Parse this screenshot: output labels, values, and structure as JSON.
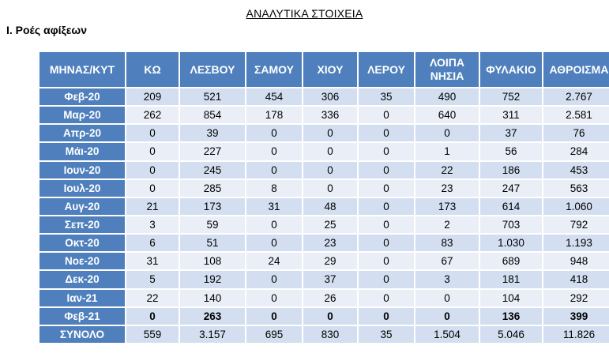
{
  "document": {
    "title": "ΑΝΑΛΥΤΙΚΑ ΣΤΟΙΧΕΙΑ",
    "section_heading": "Ι. Ροές αφίξεων"
  },
  "table": {
    "headers": [
      "ΜΗΝΑΣ/ΚΥΤ",
      "ΚΩ",
      "ΛΕΣΒΟΥ",
      "ΣΑΜΟΥ",
      "ΧΙΟΥ",
      "ΛΕΡΟΥ",
      "ΛΟΙΠΑ ΝΗΣΙΑ",
      "ΦΥΛΑΚΙΟ",
      "ΑΘΡΟΙΣΜΑ"
    ],
    "rows": [
      {
        "label": "Φεβ-20",
        "values": [
          "209",
          "521",
          "454",
          "306",
          "35",
          "490",
          "752",
          "2.767"
        ]
      },
      {
        "label": "Μαρ-20",
        "values": [
          "262",
          "854",
          "178",
          "336",
          "0",
          "640",
          "311",
          "2.581"
        ]
      },
      {
        "label": "Απρ-20",
        "values": [
          "0",
          "39",
          "0",
          "0",
          "0",
          "0",
          "37",
          "76"
        ]
      },
      {
        "label": "Μάι-20",
        "values": [
          "0",
          "227",
          "0",
          "0",
          "0",
          "1",
          "56",
          "284"
        ]
      },
      {
        "label": "Ιουν-20",
        "values": [
          "0",
          "245",
          "0",
          "0",
          "0",
          "22",
          "186",
          "453"
        ]
      },
      {
        "label": "Ιουλ-20",
        "values": [
          "0",
          "285",
          "8",
          "0",
          "0",
          "23",
          "247",
          "563"
        ]
      },
      {
        "label": "Αυγ-20",
        "values": [
          "21",
          "173",
          "31",
          "48",
          "0",
          "173",
          "614",
          "1.060"
        ]
      },
      {
        "label": "Σεπ-20",
        "values": [
          "3",
          "59",
          "0",
          "25",
          "0",
          "2",
          "703",
          "792"
        ]
      },
      {
        "label": "Οκτ-20",
        "values": [
          "6",
          "51",
          "0",
          "23",
          "0",
          "83",
          "1.030",
          "1.193"
        ]
      },
      {
        "label": "Νοε-20",
        "values": [
          "31",
          "108",
          "24",
          "29",
          "0",
          "67",
          "689",
          "948"
        ]
      },
      {
        "label": "Δεκ-20",
        "values": [
          "5",
          "192",
          "0",
          "37",
          "0",
          "3",
          "181",
          "418"
        ]
      },
      {
        "label": "Ιαν-21",
        "values": [
          "22",
          "140",
          "0",
          "26",
          "0",
          "0",
          "104",
          "292"
        ]
      },
      {
        "label": "Φεβ-21",
        "values": [
          "0",
          "263",
          "0",
          "0",
          "0",
          "0",
          "136",
          "399"
        ]
      },
      {
        "label": "ΣΥΝΟΛΟ",
        "values": [
          "559",
          "3.157",
          "695",
          "830",
          "35",
          "1.504",
          "5.046",
          "11.826"
        ]
      }
    ]
  },
  "colors": {
    "header_fill": "#4f80bd",
    "row_fill_a": "#d3dff0",
    "row_fill_b": "#e9eef7",
    "header_text": "#ffffff"
  }
}
